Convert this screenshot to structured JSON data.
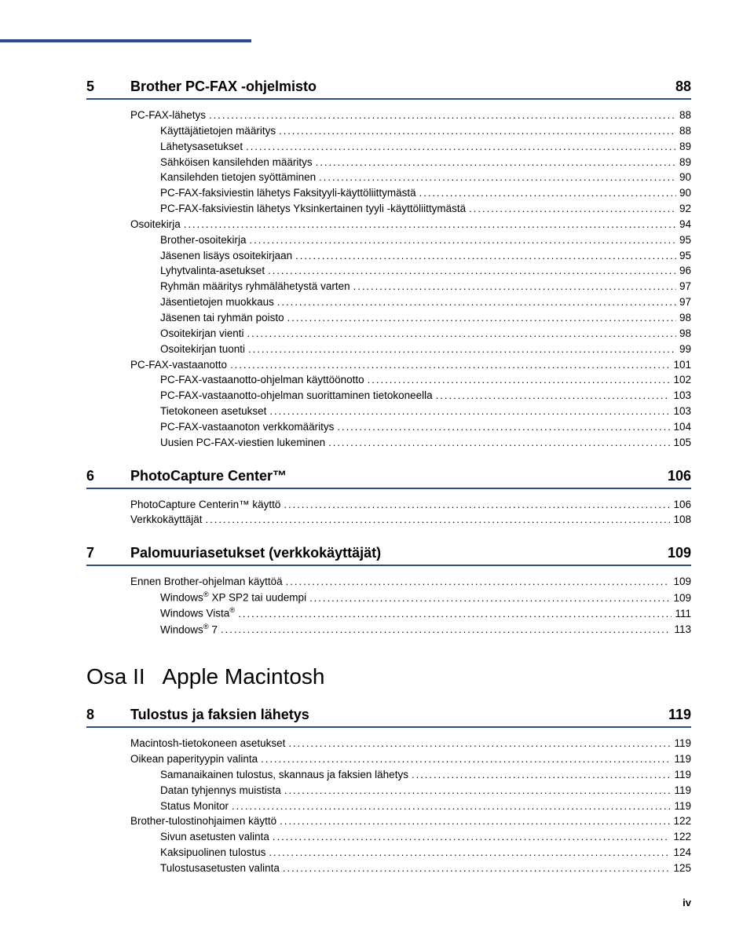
{
  "chapters": [
    {
      "num": "5",
      "title": "Brother PC-FAX -ohjelmisto",
      "page": "88",
      "items": [
        {
          "text": "PC-FAX-lähetys",
          "page": "88",
          "indent": 0
        },
        {
          "text": "Käyttäjätietojen määritys",
          "page": "88",
          "indent": 1
        },
        {
          "text": "Lähetysasetukset",
          "page": "89",
          "indent": 1
        },
        {
          "text": "Sähköisen kansilehden määritys",
          "page": "89",
          "indent": 1
        },
        {
          "text": "Kansilehden tietojen syöttäminen",
          "page": "90",
          "indent": 1
        },
        {
          "text": "PC-FAX-faksiviestin lähetys Faksityyli-käyttöliittymästä",
          "page": "90",
          "indent": 1
        },
        {
          "text": "PC-FAX-faksiviestin lähetys Yksinkertainen tyyli -käyttöliittymästä",
          "page": "92",
          "indent": 1
        },
        {
          "text": "Osoitekirja",
          "page": "94",
          "indent": 0
        },
        {
          "text": "Brother-osoitekirja",
          "page": "95",
          "indent": 1
        },
        {
          "text": "Jäsenen lisäys osoitekirjaan",
          "page": "95",
          "indent": 1
        },
        {
          "text": "Lyhytvalinta-asetukset",
          "page": "96",
          "indent": 1
        },
        {
          "text": "Ryhmän määritys ryhmälähetystä varten",
          "page": "97",
          "indent": 1
        },
        {
          "text": "Jäsentietojen muokkaus",
          "page": "97",
          "indent": 1
        },
        {
          "text": "Jäsenen tai ryhmän poisto",
          "page": "98",
          "indent": 1
        },
        {
          "text": "Osoitekirjan vienti",
          "page": "98",
          "indent": 1
        },
        {
          "text": "Osoitekirjan tuonti",
          "page": "99",
          "indent": 1
        },
        {
          "text": "PC-FAX-vastaanotto",
          "page": "101",
          "indent": 0
        },
        {
          "text": "PC-FAX-vastaanotto-ohjelman käyttöönotto",
          "page": "102",
          "indent": 1
        },
        {
          "text": "PC-FAX-vastaanotto-ohjelman suorittaminen tietokoneella",
          "page": "103",
          "indent": 1
        },
        {
          "text": "Tietokoneen asetukset",
          "page": "103",
          "indent": 1
        },
        {
          "text": "PC-FAX-vastaanoton verkkomääritys",
          "page": "104",
          "indent": 1
        },
        {
          "text": "Uusien PC-FAX-viestien lukeminen",
          "page": "105",
          "indent": 1
        }
      ]
    },
    {
      "num": "6",
      "title": "PhotoCapture Center™",
      "page": "106",
      "items": [
        {
          "text": "PhotoCapture Centerin™ käyttö",
          "page": "106",
          "indent": 0
        },
        {
          "text": "Verkkokäyttäjät",
          "page": "108",
          "indent": 0
        }
      ]
    },
    {
      "num": "7",
      "title": "Palomuuriasetukset (verkkokäyttäjät)",
      "page": "109",
      "items": [
        {
          "text": "Ennen Brother-ohjelman käyttöä",
          "page": "109",
          "indent": 0
        },
        {
          "text": "Windows<sup>®</sup> XP SP2 tai uudempi",
          "page": "109",
          "indent": 1,
          "html": true
        },
        {
          "text": "Windows Vista<sup>®</sup>",
          "page": "111",
          "indent": 1,
          "html": true
        },
        {
          "text": "Windows<sup>®</sup> 7",
          "page": "113",
          "indent": 1,
          "html": true
        }
      ]
    }
  ],
  "part": {
    "label": "Osa II",
    "title": "Apple Macintosh"
  },
  "chapters2": [
    {
      "num": "8",
      "title": "Tulostus ja faksien lähetys",
      "page": "119",
      "items": [
        {
          "text": "Macintosh-tietokoneen asetukset",
          "page": "119",
          "indent": 0
        },
        {
          "text": "Oikean paperityypin valinta",
          "page": "119",
          "indent": 0
        },
        {
          "text": "Samanaikainen tulostus, skannaus ja faksien lähetys",
          "page": "119",
          "indent": 1
        },
        {
          "text": "Datan tyhjennys muistista",
          "page": "119",
          "indent": 1
        },
        {
          "text": "Status Monitor",
          "page": "119",
          "indent": 1
        },
        {
          "text": "Brother-tulostinohjaimen käyttö",
          "page": "122",
          "indent": 0
        },
        {
          "text": "Sivun asetusten valinta",
          "page": "122",
          "indent": 1
        },
        {
          "text": "Kaksipuolinen tulostus",
          "page": "124",
          "indent": 1
        },
        {
          "text": "Tulostusasetusten valinta",
          "page": "125",
          "indent": 1
        }
      ]
    }
  ],
  "page_number": "iv"
}
